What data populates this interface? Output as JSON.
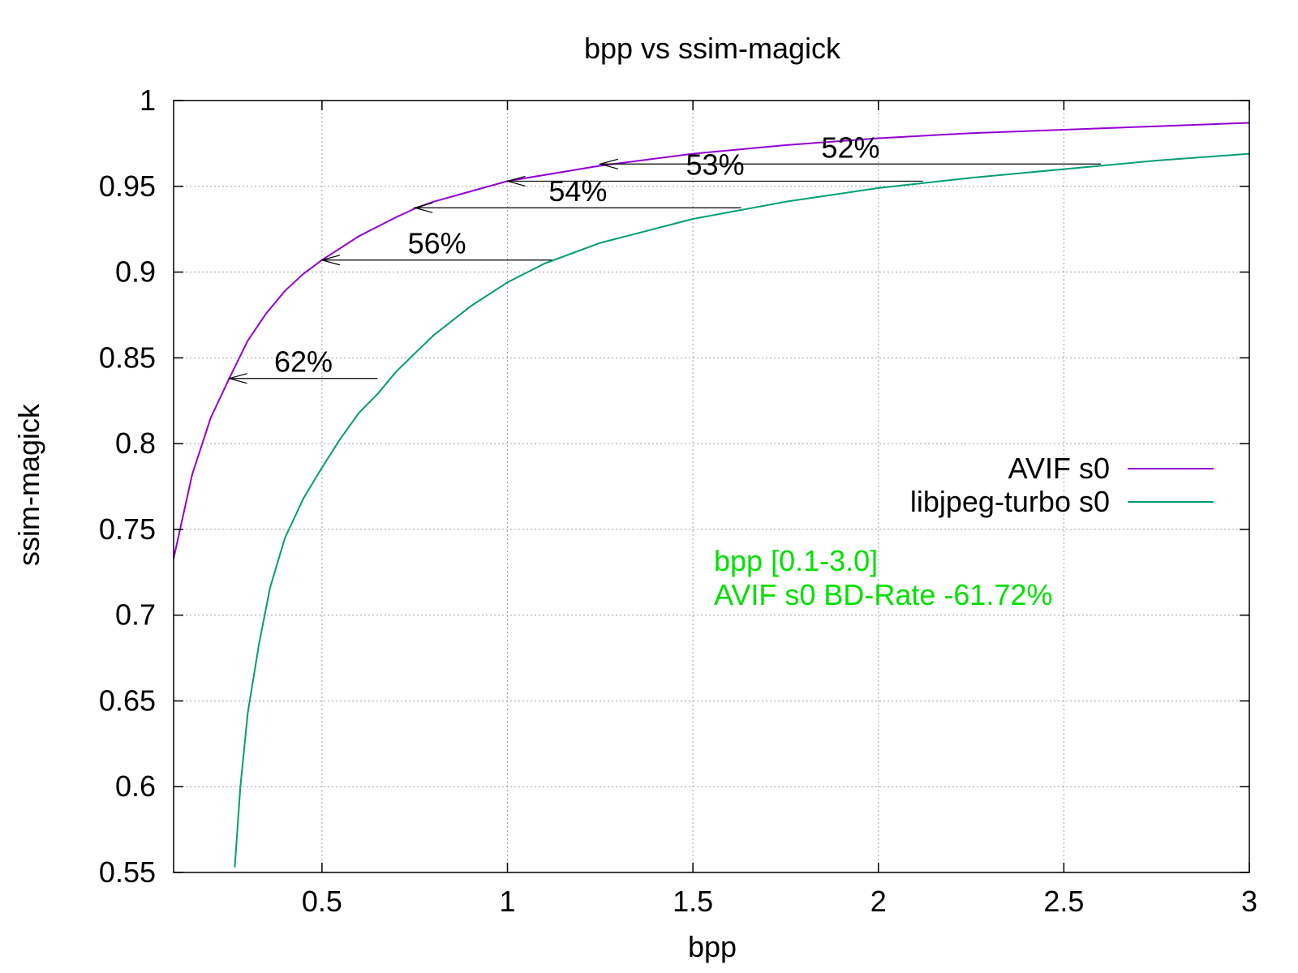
{
  "chart_data": {
    "type": "line",
    "title": "bpp vs ssim-magick",
    "xlabel": "bpp",
    "ylabel": "ssim-magick",
    "xlim": [
      0.1,
      3.0
    ],
    "ylim": [
      0.55,
      1.0
    ],
    "xticks": [
      0.5,
      1,
      1.5,
      2,
      2.5,
      3
    ],
    "xtick_labels": [
      "0.5",
      "1",
      "1.5",
      "2",
      "2.5",
      "3"
    ],
    "yticks": [
      0.55,
      0.6,
      0.65,
      0.7,
      0.75,
      0.8,
      0.85,
      0.9,
      0.95,
      1.0
    ],
    "ytick_labels": [
      "0.55",
      "0.6",
      "0.65",
      "0.7",
      "0.75",
      "0.8",
      "0.85",
      "0.9",
      "0.95",
      "1"
    ],
    "grid": true,
    "legend_position": "right",
    "series": [
      {
        "name": "AVIF s0",
        "color": "#9400d3",
        "x": [
          0.1,
          0.15,
          0.2,
          0.25,
          0.3,
          0.35,
          0.4,
          0.45,
          0.5,
          0.6,
          0.7,
          0.75,
          0.8,
          0.9,
          1.0,
          1.25,
          1.5,
          1.75,
          2.0,
          2.25,
          2.5,
          2.75,
          3.0
        ],
        "y": [
          0.733,
          0.782,
          0.815,
          0.838,
          0.86,
          0.876,
          0.889,
          0.899,
          0.907,
          0.921,
          0.932,
          0.937,
          0.941,
          0.947,
          0.953,
          0.962,
          0.969,
          0.974,
          0.978,
          0.981,
          0.983,
          0.985,
          0.987
        ]
      },
      {
        "name": "libjpeg-turbo s0",
        "color": "#009e73",
        "x": [
          0.265,
          0.28,
          0.3,
          0.33,
          0.36,
          0.4,
          0.45,
          0.5,
          0.55,
          0.6,
          0.65,
          0.7,
          0.8,
          0.9,
          1.0,
          1.1,
          1.25,
          1.5,
          1.75,
          2.0,
          2.25,
          2.5,
          2.75,
          3.0
        ],
        "y": [
          0.553,
          0.6,
          0.643,
          0.683,
          0.716,
          0.745,
          0.768,
          0.786,
          0.803,
          0.818,
          0.829,
          0.842,
          0.863,
          0.88,
          0.894,
          0.905,
          0.917,
          0.931,
          0.941,
          0.949,
          0.955,
          0.96,
          0.965,
          0.969
        ]
      }
    ],
    "annotations": [
      {
        "label": "62%",
        "y": 0.838,
        "x_from": 0.65,
        "x_to": 0.25
      },
      {
        "label": "56%",
        "y": 0.907,
        "x_from": 1.12,
        "x_to": 0.5
      },
      {
        "label": "54%",
        "y": 0.9375,
        "x_from": 1.63,
        "x_to": 0.75
      },
      {
        "label": "53%",
        "y": 0.953,
        "x_from": 2.12,
        "x_to": 1.0
      },
      {
        "label": "52%",
        "y": 0.963,
        "x_from": 2.6,
        "x_to": 1.25
      }
    ],
    "info_color": "#00e000",
    "info_lines": [
      "bpp [0.1-3.0]",
      "AVIF s0 BD-Rate -61.72%"
    ]
  }
}
